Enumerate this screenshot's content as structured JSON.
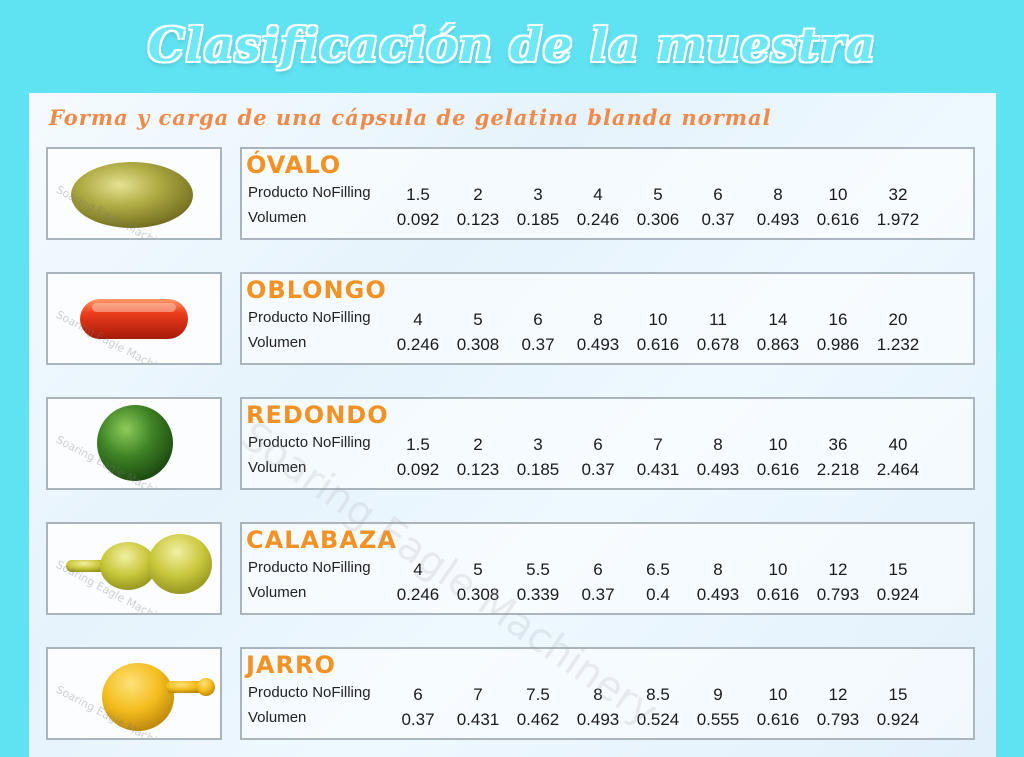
{
  "title": "Clasificación de la muestra",
  "subtitle": "Forma y carga de una cápsula de gelatina blanda normal",
  "watermark": "Soaring Eagle Machinery",
  "labels": {
    "product": "Producto NoFilling",
    "volume": "Volumen"
  },
  "shapes": [
    {
      "name": "ÓVALO",
      "icon": "oval-capsule-icon",
      "color": "#a8a43a",
      "product": [
        "1.5",
        "2",
        "3",
        "4",
        "5",
        "6",
        "8",
        "10",
        "32"
      ],
      "volume": [
        "0.092",
        "0.123",
        "0.185",
        "0.246",
        "0.306",
        "0.37",
        "0.493",
        "0.616",
        "1.972"
      ]
    },
    {
      "name": "OBLONGO",
      "icon": "oblong-capsule-icon",
      "color": "#e53a1e",
      "product": [
        "4",
        "5",
        "6",
        "8",
        "10",
        "11",
        "14",
        "16",
        "20"
      ],
      "volume": [
        "0.246",
        "0.308",
        "0.37",
        "0.493",
        "0.616",
        "0.678",
        "0.863",
        "0.986",
        "1.232"
      ]
    },
    {
      "name": "REDONDO",
      "icon": "round-capsule-icon",
      "color": "#3d7d24",
      "product": [
        "1.5",
        "2",
        "3",
        "6",
        "7",
        "8",
        "10",
        "36",
        "40"
      ],
      "volume": [
        "0.092",
        "0.123",
        "0.185",
        "0.37",
        "0.431",
        "0.493",
        "0.616",
        "2.218",
        "2.464"
      ]
    },
    {
      "name": "CALABAZA",
      "icon": "gourd-capsule-icon",
      "color": "#c8c83a",
      "product": [
        "4",
        "5",
        "5.5",
        "6",
        "6.5",
        "8",
        "10",
        "12",
        "15"
      ],
      "volume": [
        "0.246",
        "0.308",
        "0.339",
        "0.37",
        "0.4",
        "0.493",
        "0.616",
        "0.793",
        "0.924"
      ]
    },
    {
      "name": "JARRO",
      "icon": "jar-capsule-icon",
      "color": "#f2bb1c",
      "product": [
        "6",
        "7",
        "7.5",
        "8",
        "8.5",
        "9",
        "10",
        "12",
        "15"
      ],
      "volume": [
        "0.37",
        "0.431",
        "0.462",
        "0.493",
        "0.524",
        "0.555",
        "0.616",
        "0.793",
        "0.924"
      ]
    }
  ]
}
